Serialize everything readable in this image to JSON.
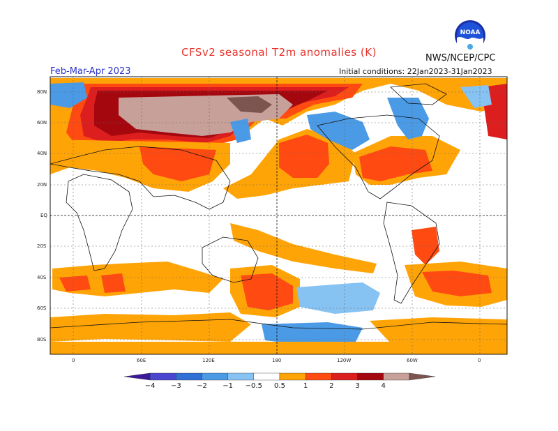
{
  "header": {
    "title": "CFSv2 seasonal T2m anomalies (K)",
    "agency": "NWS/NCEP/CPC",
    "period": "Feb-Mar-Apr 2023",
    "initial_conditions": "Initial conditions: 22Jan2023-31Jan2023",
    "logo_text": "NOAA"
  },
  "map": {
    "lat_labels": [
      "80N",
      "60N",
      "40N",
      "20N",
      "EQ",
      "20S",
      "40S",
      "60S",
      "80S"
    ],
    "lon_labels": [
      "0",
      "60E",
      "120E",
      "180",
      "120W",
      "60W",
      "0"
    ]
  },
  "colorbar": {
    "labels": [
      "-4",
      "-3",
      "-2",
      "-1",
      "-0.5",
      "0.5",
      "1",
      "2",
      "3",
      "4"
    ],
    "colors": [
      "#3a1a9a",
      "#4a46d0",
      "#2f6fd6",
      "#4a9ae6",
      "#86c2f2",
      "#ffffff",
      "#ffa407",
      "#ff4a12",
      "#dc1e1e",
      "#a5070f",
      "#c8a09a",
      "#7c5550"
    ]
  },
  "colors": {
    "warm_light": "#ffa407",
    "warm_medium": "#ff4a12",
    "warm_strong": "#dc1e1e",
    "warm_dark": "#a5070f",
    "warm_extreme": "#c8a09a",
    "warm_max": "#7c5550",
    "cool_light": "#86c2f2",
    "cool_medium": "#4a9ae6"
  }
}
